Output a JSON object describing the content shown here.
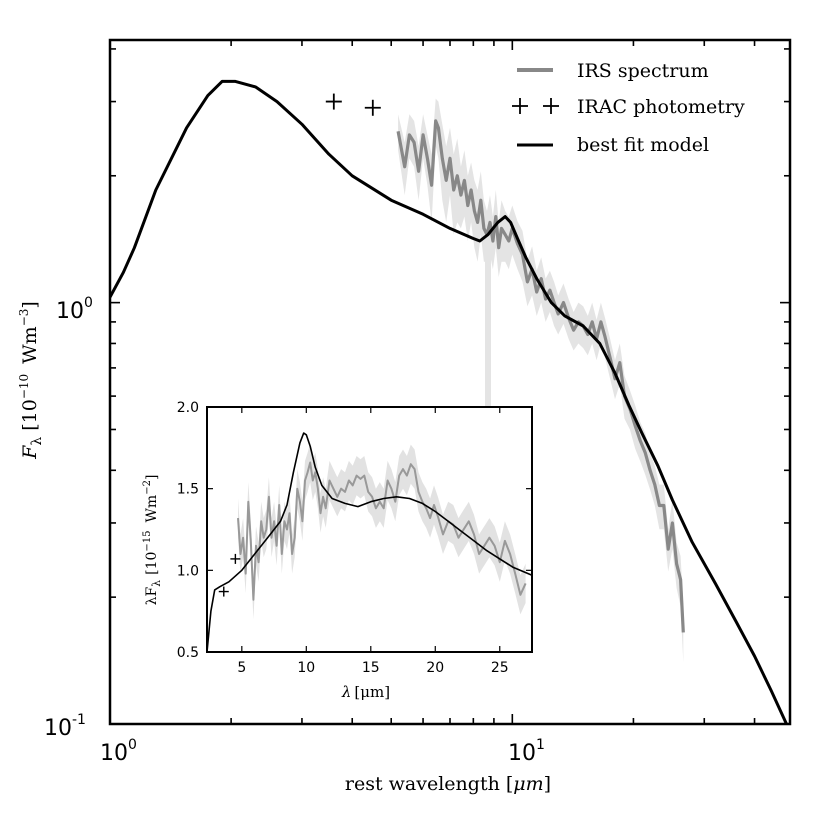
{
  "chart_data": [
    {
      "type": "line",
      "panel": "main",
      "xscale": "log",
      "yscale": "log",
      "xlabel_prefix": "rest wavelength [",
      "xlabel_unit": "μm",
      "xlabel_suffix": "]",
      "ylabel_sym": "F",
      "ylabel_sub": "λ",
      "ylabel_unit_open": "[10",
      "ylabel_unit_exp": "−10",
      "ylabel_unit_main": "Wm",
      "ylabel_unit_exp2": "−3",
      "ylabel_unit_close": "]",
      "xlim": [
        1.0,
        49.0
      ],
      "ylim": [
        0.1,
        4.2
      ],
      "xticks": [
        {
          "value": 1,
          "base": "10",
          "exp": "0"
        },
        {
          "value": 10,
          "base": "10",
          "exp": "1"
        }
      ],
      "yticks": [
        {
          "value": 0.1,
          "base": "10",
          "exp": "-1"
        },
        {
          "value": 1.0,
          "base": "10",
          "exp": "0"
        }
      ],
      "legend": {
        "position": "top-right",
        "entries": [
          {
            "label": "IRS spectrum",
            "marker": "line",
            "color": "#888888"
          },
          {
            "label": "IRAC photometry",
            "marker": "plus",
            "color": "#000000"
          },
          {
            "label": "best fit model",
            "marker": "line",
            "color": "#000000"
          }
        ]
      },
      "series": [
        {
          "name": "best fit model",
          "color": "#000000",
          "x": [
            1.0,
            1.08,
            1.15,
            1.3,
            1.55,
            1.75,
            1.9,
            2.05,
            2.3,
            2.6,
            3.0,
            3.5,
            4.0,
            5.0,
            6.0,
            7.0,
            8.0,
            8.3,
            8.7,
            9.2,
            9.6,
            9.9,
            10.3,
            10.8,
            11.5,
            12.5,
            13.5,
            15.0,
            16.5,
            18.0,
            19.5,
            21.0,
            23.0,
            25.0,
            28.0,
            32.0,
            36.0,
            40.0,
            44.0,
            48.5
          ],
          "y": [
            1.03,
            1.18,
            1.35,
            1.85,
            2.6,
            3.1,
            3.35,
            3.35,
            3.25,
            3.0,
            2.65,
            2.25,
            2.0,
            1.75,
            1.62,
            1.5,
            1.42,
            1.4,
            1.45,
            1.55,
            1.6,
            1.55,
            1.42,
            1.28,
            1.14,
            1.0,
            0.93,
            0.88,
            0.8,
            0.68,
            0.57,
            0.49,
            0.41,
            0.34,
            0.27,
            0.215,
            0.175,
            0.145,
            0.12,
            0.098
          ]
        },
        {
          "name": "IRS spectrum",
          "color": "#888888",
          "band_color": "#e4e4e4",
          "x": [
            5.2,
            5.4,
            5.55,
            5.7,
            5.85,
            6.0,
            6.15,
            6.3,
            6.45,
            6.55,
            6.7,
            6.85,
            7.0,
            7.15,
            7.3,
            7.45,
            7.6,
            7.75,
            7.9,
            8.05,
            8.2,
            8.35,
            8.5,
            8.65,
            8.8,
            8.95,
            9.1,
            9.25,
            9.4,
            9.6,
            9.8,
            10.0,
            10.3,
            10.6,
            10.9,
            11.2,
            11.5,
            11.8,
            12.1,
            12.4,
            12.7,
            13.0,
            13.4,
            13.8,
            14.2,
            14.6,
            15.0,
            15.4,
            15.8,
            16.2,
            16.6,
            17.0,
            17.5,
            18.0,
            18.5,
            19.0,
            19.6,
            20.2,
            20.8,
            21.4,
            22.0,
            22.6,
            23.2,
            23.8,
            24.4,
            25.0,
            25.6,
            26.2,
            26.6
          ],
          "y": [
            2.55,
            2.1,
            2.5,
            2.4,
            2.05,
            2.5,
            2.2,
            1.9,
            2.7,
            2.6,
            2.2,
            1.95,
            2.2,
            1.85,
            2.0,
            1.8,
            1.95,
            1.7,
            1.85,
            1.65,
            1.55,
            1.75,
            1.5,
            1.45,
            1.55,
            1.4,
            1.6,
            1.35,
            1.5,
            1.45,
            1.4,
            1.5,
            1.38,
            1.3,
            1.12,
            1.2,
            1.06,
            1.14,
            1.02,
            1.07,
            1.0,
            0.94,
            1.0,
            0.92,
            0.86,
            0.9,
            0.88,
            0.84,
            0.9,
            0.82,
            0.9,
            0.83,
            0.74,
            0.66,
            0.72,
            0.6,
            0.56,
            0.51,
            0.47,
            0.44,
            0.4,
            0.37,
            0.33,
            0.33,
            0.26,
            0.3,
            0.24,
            0.22,
            0.165
          ],
          "lower": [
            2.3,
            1.8,
            2.2,
            2.1,
            1.75,
            2.2,
            1.9,
            1.55,
            2.35,
            2.2,
            1.75,
            1.55,
            1.8,
            1.45,
            1.55,
            1.5,
            1.6,
            1.4,
            1.55,
            1.35,
            1.25,
            1.45,
            1.25,
            1.25,
            1.3,
            1.2,
            1.35,
            1.15,
            1.25,
            1.25,
            1.2,
            1.3,
            1.2,
            1.12,
            0.98,
            1.04,
            0.93,
            1.0,
            0.9,
            0.95,
            0.88,
            0.84,
            0.89,
            0.82,
            0.77,
            0.8,
            0.78,
            0.75,
            0.8,
            0.73,
            0.8,
            0.74,
            0.66,
            0.59,
            0.64,
            0.53,
            0.5,
            0.45,
            0.42,
            0.39,
            0.36,
            0.33,
            0.29,
            0.29,
            0.23,
            0.26,
            0.21,
            0.19,
            0.14
          ],
          "upper": [
            2.8,
            2.4,
            2.8,
            2.7,
            2.35,
            2.8,
            2.5,
            2.25,
            3.05,
            3.0,
            2.65,
            2.35,
            2.6,
            2.25,
            2.45,
            2.1,
            2.3,
            2.0,
            2.15,
            1.95,
            1.85,
            2.05,
            1.75,
            1.65,
            1.8,
            1.6,
            1.85,
            1.55,
            1.75,
            1.65,
            1.6,
            1.7,
            1.56,
            1.48,
            1.26,
            1.36,
            1.19,
            1.28,
            1.14,
            1.19,
            1.12,
            1.04,
            1.11,
            1.02,
            0.95,
            1.0,
            0.98,
            0.93,
            1.0,
            0.91,
            1.0,
            0.92,
            0.82,
            0.73,
            0.8,
            0.67,
            0.62,
            0.57,
            0.52,
            0.49,
            0.44,
            0.41,
            0.37,
            0.37,
            0.29,
            0.34,
            0.27,
            0.25,
            0.19
          ]
        }
      ],
      "points": {
        "name": "IRAC photometry",
        "x": [
          3.6,
          4.5
        ],
        "y": [
          3.0,
          2.9
        ]
      }
    },
    {
      "type": "line",
      "panel": "inset",
      "xscale": "linear",
      "yscale": "linear",
      "xlabel_sym": "λ",
      "xlabel_unit": "[μm]",
      "ylabel_main": "λF",
      "ylabel_sub": "λ",
      "ylabel_unit_open": "[10",
      "ylabel_unit_exp": "−15",
      "ylabel_unit_main": "Wm",
      "ylabel_unit_exp2": "−2",
      "ylabel_unit_close": "]",
      "xlim": [
        2.3,
        27.5
      ],
      "ylim": [
        0.5,
        2.0
      ],
      "xticks": [
        "5",
        "10",
        "15",
        "20",
        "25"
      ],
      "yticks": [
        "0.5",
        "1.0",
        "1.5",
        "2.0"
      ],
      "series": [
        {
          "name": "best fit model",
          "color": "#000000",
          "x": [
            2.3,
            2.6,
            2.9,
            3.3,
            4.0,
            5.0,
            6.0,
            7.0,
            8.0,
            8.5,
            9.0,
            9.5,
            9.8,
            10.0,
            10.3,
            10.7,
            11.2,
            12.0,
            13.0,
            14.0,
            15.0,
            16.0,
            17.0,
            18.0,
            19.0,
            20.0,
            21.0,
            22.0,
            23.0,
            24.0,
            25.0,
            26.0,
            27.5
          ],
          "y": [
            0.5,
            0.75,
            0.88,
            0.9,
            0.93,
            1.0,
            1.1,
            1.2,
            1.3,
            1.4,
            1.6,
            1.78,
            1.84,
            1.83,
            1.76,
            1.63,
            1.52,
            1.44,
            1.41,
            1.39,
            1.42,
            1.44,
            1.45,
            1.44,
            1.41,
            1.36,
            1.3,
            1.24,
            1.18,
            1.12,
            1.07,
            1.02,
            0.97
          ]
        },
        {
          "name": "IRS spectrum",
          "color": "#999999",
          "band_color": "#e2e2e2",
          "x": [
            4.7,
            4.9,
            5.1,
            5.3,
            5.5,
            5.7,
            5.9,
            6.1,
            6.3,
            6.5,
            6.7,
            6.9,
            7.1,
            7.3,
            7.5,
            7.7,
            7.9,
            8.1,
            8.3,
            8.5,
            8.7,
            8.9,
            9.1,
            9.3,
            9.5,
            9.7,
            9.9,
            10.1,
            10.3,
            10.5,
            10.7,
            10.9,
            11.1,
            11.3,
            11.5,
            11.8,
            12.1,
            12.4,
            12.7,
            13.0,
            13.3,
            13.6,
            13.9,
            14.2,
            14.5,
            14.8,
            15.1,
            15.4,
            15.7,
            16.0,
            16.3,
            16.6,
            16.9,
            17.2,
            17.5,
            17.8,
            18.1,
            18.4,
            18.7,
            19.0,
            19.3,
            19.6,
            19.9,
            20.2,
            20.6,
            21.0,
            21.4,
            21.8,
            22.2,
            22.6,
            23.0,
            23.4,
            23.8,
            24.2,
            24.6,
            25.0,
            25.4,
            25.8,
            26.2,
            26.6,
            27.0
          ],
          "y": [
            1.32,
            1.1,
            1.2,
            0.98,
            1.42,
            1.18,
            0.82,
            1.15,
            1.05,
            1.3,
            1.2,
            1.25,
            1.45,
            1.2,
            1.3,
            1.15,
            1.4,
            1.1,
            1.3,
            1.25,
            1.35,
            1.1,
            1.2,
            1.5,
            1.42,
            1.3,
            1.55,
            1.6,
            1.66,
            1.55,
            1.6,
            1.5,
            1.35,
            1.45,
            1.38,
            1.55,
            1.5,
            1.45,
            1.5,
            1.48,
            1.55,
            1.52,
            1.58,
            1.56,
            1.58,
            1.48,
            1.45,
            1.38,
            1.42,
            1.38,
            1.55,
            1.5,
            1.42,
            1.58,
            1.62,
            1.58,
            1.65,
            1.62,
            1.48,
            1.42,
            1.38,
            1.32,
            1.4,
            1.33,
            1.22,
            1.3,
            1.28,
            1.2,
            1.25,
            1.3,
            1.22,
            1.1,
            1.15,
            1.2,
            1.15,
            1.05,
            1.18,
            1.1,
            0.98,
            0.85,
            0.92
          ]
        }
      ],
      "points": {
        "name": "IRAC photometry",
        "x": [
          3.6,
          4.5
        ],
        "y": [
          0.87,
          1.07
        ]
      }
    }
  ]
}
